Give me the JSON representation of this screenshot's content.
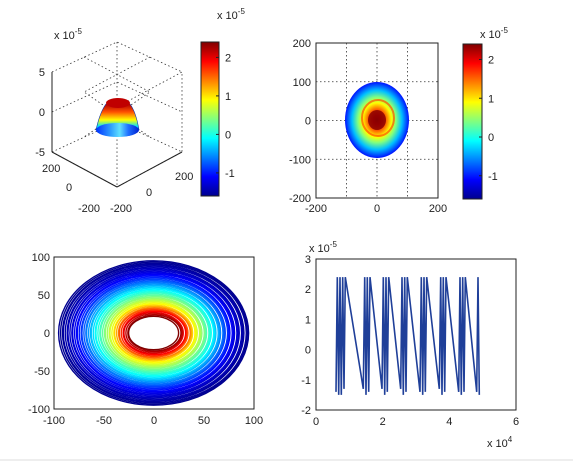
{
  "chart_data": [
    {
      "type": "surface",
      "panel": "3d-surface",
      "exponent_label": "x 10",
      "exponent_power": "-5",
      "zlim": [
        -5,
        5
      ],
      "z_ticks": [
        "5",
        "0",
        "-5"
      ],
      "x_ticks": [
        "-200",
        "0",
        "200"
      ],
      "y_ticks": [
        "-200",
        "0",
        "200"
      ],
      "grid": true,
      "colorbar": {
        "exponent_label": "x 10",
        "exponent_power": "-5",
        "ticks": [
          "2",
          "1",
          "0",
          "-1"
        ],
        "range": [
          -1.6,
          2.4
        ]
      },
      "peak_value": 2.4
    },
    {
      "type": "heatmap",
      "panel": "top-view",
      "xlim": [
        -200,
        200
      ],
      "ylim": [
        -200,
        200
      ],
      "x_ticks": [
        "-200",
        "0",
        "200"
      ],
      "y_ticks": [
        "200",
        "100",
        "0",
        "-100",
        "-200"
      ],
      "grid": true,
      "disc_radius": 100,
      "colorbar": {
        "exponent_label": "x 10",
        "exponent_power": "-5",
        "ticks": [
          "2",
          "1",
          "0",
          "-1"
        ],
        "range": [
          -1.6,
          2.4
        ]
      }
    },
    {
      "type": "contour",
      "panel": "contour",
      "xlim": [
        -100,
        100
      ],
      "ylim": [
        -100,
        100
      ],
      "x_ticks": [
        "-100",
        "-50",
        "0",
        "50",
        "100"
      ],
      "y_ticks": [
        "100",
        "50",
        "0",
        "-50",
        "-100"
      ],
      "outer_radius_x": 95,
      "outer_radius_y": 95,
      "inner_radius_x": 25,
      "inner_radius_y": 22
    },
    {
      "type": "line",
      "panel": "time-series",
      "xlim": [
        0,
        60000
      ],
      "ylim": [
        -2e-05,
        3e-05
      ],
      "x_ticks": [
        "0",
        "2",
        "4",
        "6"
      ],
      "y_ticks": [
        "3",
        "2",
        "1",
        "0",
        "-1",
        "-2"
      ],
      "x_exponent_label": "x 10",
      "x_exponent_power": "4",
      "y_exponent_label": "x 10",
      "y_exponent_power": "-5",
      "color": "#1f3f99",
      "series": [
        {
          "x": [
            6000,
            6400,
            6800,
            7200,
            7600,
            8000,
            8400,
            8800,
            14200,
            14600,
            15000,
            15400,
            15800,
            16200,
            19800,
            20200,
            20600,
            21000,
            21400,
            21800,
            25400,
            25800,
            26200,
            26600,
            27000,
            27400,
            31200,
            31600,
            32000,
            32400,
            32800,
            33200,
            37000,
            37400,
            37800,
            38200,
            38600,
            39000,
            42800,
            43200,
            43600,
            44000,
            44400,
            44800,
            48200,
            48600,
            49000
          ],
          "y": [
            -1.4e-05,
            2.4e-05,
            -1.5e-05,
            2.4e-05,
            -1.5e-05,
            2.4e-05,
            -1.3e-05,
            2.4e-05,
            -1.3e-05,
            2.4e-05,
            -1.5e-05,
            2.4e-05,
            -1.4e-05,
            2.4e-05,
            -1.3e-05,
            2.4e-05,
            -1.5e-05,
            2.4e-05,
            -1.4e-05,
            2.4e-05,
            -1.3e-05,
            2.4e-05,
            -1.5e-05,
            2.4e-05,
            -1.4e-05,
            2.4e-05,
            -1.4e-05,
            2.4e-05,
            -1.5e-05,
            2.4e-05,
            -1.4e-05,
            2.4e-05,
            -1.3e-05,
            2.4e-05,
            -1.5e-05,
            2.4e-05,
            -1.4e-05,
            2.4e-05,
            -1.4e-05,
            2.4e-05,
            -1.5e-05,
            2.4e-05,
            -1.4e-05,
            2.4e-05,
            -1.4e-05,
            2.4e-05,
            -1.5e-05
          ]
        }
      ]
    }
  ]
}
